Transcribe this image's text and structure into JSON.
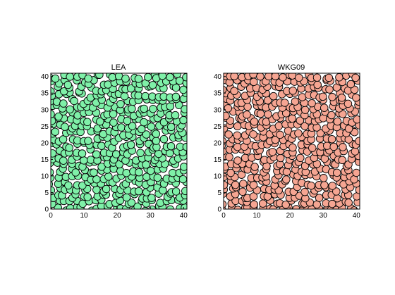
{
  "chart_data": [
    {
      "type": "scatter",
      "title": "LEA",
      "xlabel": "",
      "ylabel": "",
      "xlim": [
        0,
        41
      ],
      "ylim": [
        0,
        41
      ],
      "x_ticks": [
        0,
        10,
        20,
        30,
        40
      ],
      "y_ticks": [
        0,
        5,
        10,
        15,
        20,
        25,
        30,
        35,
        40
      ],
      "grid": false,
      "marker_color": "#7ff0a8",
      "marker_edge_color": "#000000",
      "marker": "circle",
      "points_description": "dense uniform field of points covering the full 0–41 x 0–41 square"
    },
    {
      "type": "scatter",
      "title": "WKG09",
      "xlabel": "",
      "ylabel": "",
      "xlim": [
        0,
        41
      ],
      "ylim": [
        0,
        41
      ],
      "x_ticks": [
        0,
        10,
        20,
        30,
        40
      ],
      "y_ticks": [
        0,
        5,
        10,
        15,
        20,
        25,
        30,
        35,
        40
      ],
      "grid": false,
      "marker_color": "#f5a592",
      "marker_edge_color": "#000000",
      "marker": "circle",
      "points_description": "dense uniform field of points covering the full 0–41 x 0–41 square"
    }
  ]
}
